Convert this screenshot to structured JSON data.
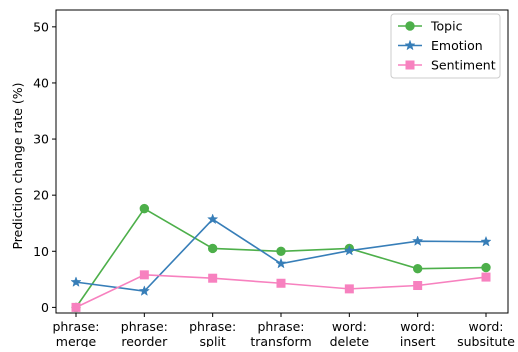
{
  "chart_data": {
    "type": "line",
    "categories": [
      [
        "phrase:",
        "merge"
      ],
      [
        "phrase:",
        "reorder"
      ],
      [
        "phrase:",
        "split"
      ],
      [
        "phrase:",
        "transform"
      ],
      [
        "word:",
        "delete"
      ],
      [
        "word:",
        "insert"
      ],
      [
        "word:",
        "subsitute"
      ]
    ],
    "ylabel": "Prediction change rate (%)",
    "xlabel": "",
    "ylim": [
      -1,
      53
    ],
    "yticks": [
      0,
      10,
      20,
      30,
      40,
      50
    ],
    "grid": false,
    "legend_position": "top-right",
    "series": [
      {
        "name": "Topic",
        "color": "#4daf4a",
        "marker": "circle",
        "values": [
          0.0,
          17.6,
          10.5,
          10.0,
          10.5,
          6.9,
          7.1
        ]
      },
      {
        "name": "Emotion",
        "color": "#377eb8",
        "marker": "star",
        "values": [
          4.5,
          2.9,
          15.7,
          7.8,
          10.1,
          11.8,
          11.7
        ]
      },
      {
        "name": "Sentiment",
        "color": "#f781bf",
        "marker": "square",
        "values": [
          0.0,
          5.8,
          5.2,
          4.3,
          3.3,
          3.9,
          5.4
        ]
      }
    ]
  }
}
